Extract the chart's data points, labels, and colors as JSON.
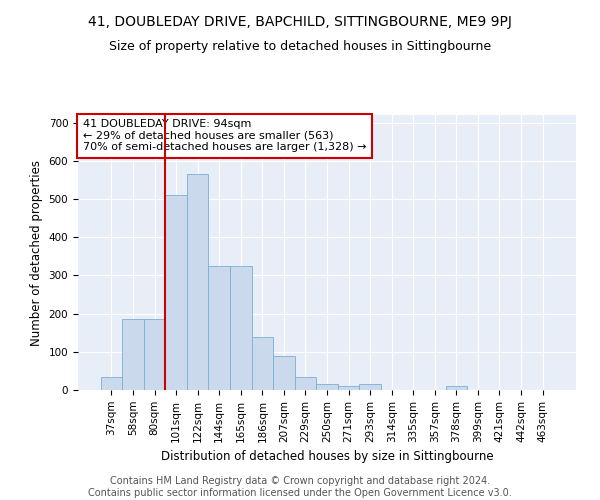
{
  "title": "41, DOUBLEDAY DRIVE, BAPCHILD, SITTINGBOURNE, ME9 9PJ",
  "subtitle": "Size of property relative to detached houses in Sittingbourne",
  "xlabel": "Distribution of detached houses by size in Sittingbourne",
  "ylabel": "Number of detached properties",
  "footer1": "Contains HM Land Registry data © Crown copyright and database right 2024.",
  "footer2": "Contains public sector information licensed under the Open Government Licence v3.0.",
  "bar_color": "#cad9ec",
  "bar_edge_color": "#7aafd4",
  "annotation_box_color": "#cc0000",
  "vline_color": "#cc0000",
  "background_color": "#e8eef7",
  "annotation_text": "41 DOUBLEDAY DRIVE: 94sqm\n← 29% of detached houses are smaller (563)\n70% of semi-detached houses are larger (1,328) →",
  "property_size": 94,
  "categories": [
    "37sqm",
    "58sqm",
    "80sqm",
    "101sqm",
    "122sqm",
    "144sqm",
    "165sqm",
    "186sqm",
    "207sqm",
    "229sqm",
    "250sqm",
    "271sqm",
    "293sqm",
    "314sqm",
    "335sqm",
    "357sqm",
    "378sqm",
    "399sqm",
    "421sqm",
    "442sqm",
    "463sqm"
  ],
  "values": [
    35,
    185,
    185,
    510,
    565,
    325,
    325,
    140,
    90,
    35,
    15,
    10,
    15,
    0,
    0,
    0,
    10,
    0,
    0,
    0,
    0
  ],
  "ylim": [
    0,
    720
  ],
  "yticks": [
    0,
    100,
    200,
    300,
    400,
    500,
    600,
    700
  ],
  "title_fontsize": 10,
  "subtitle_fontsize": 9,
  "axis_label_fontsize": 8.5,
  "tick_fontsize": 7.5,
  "annotation_fontsize": 8,
  "footer_fontsize": 7
}
